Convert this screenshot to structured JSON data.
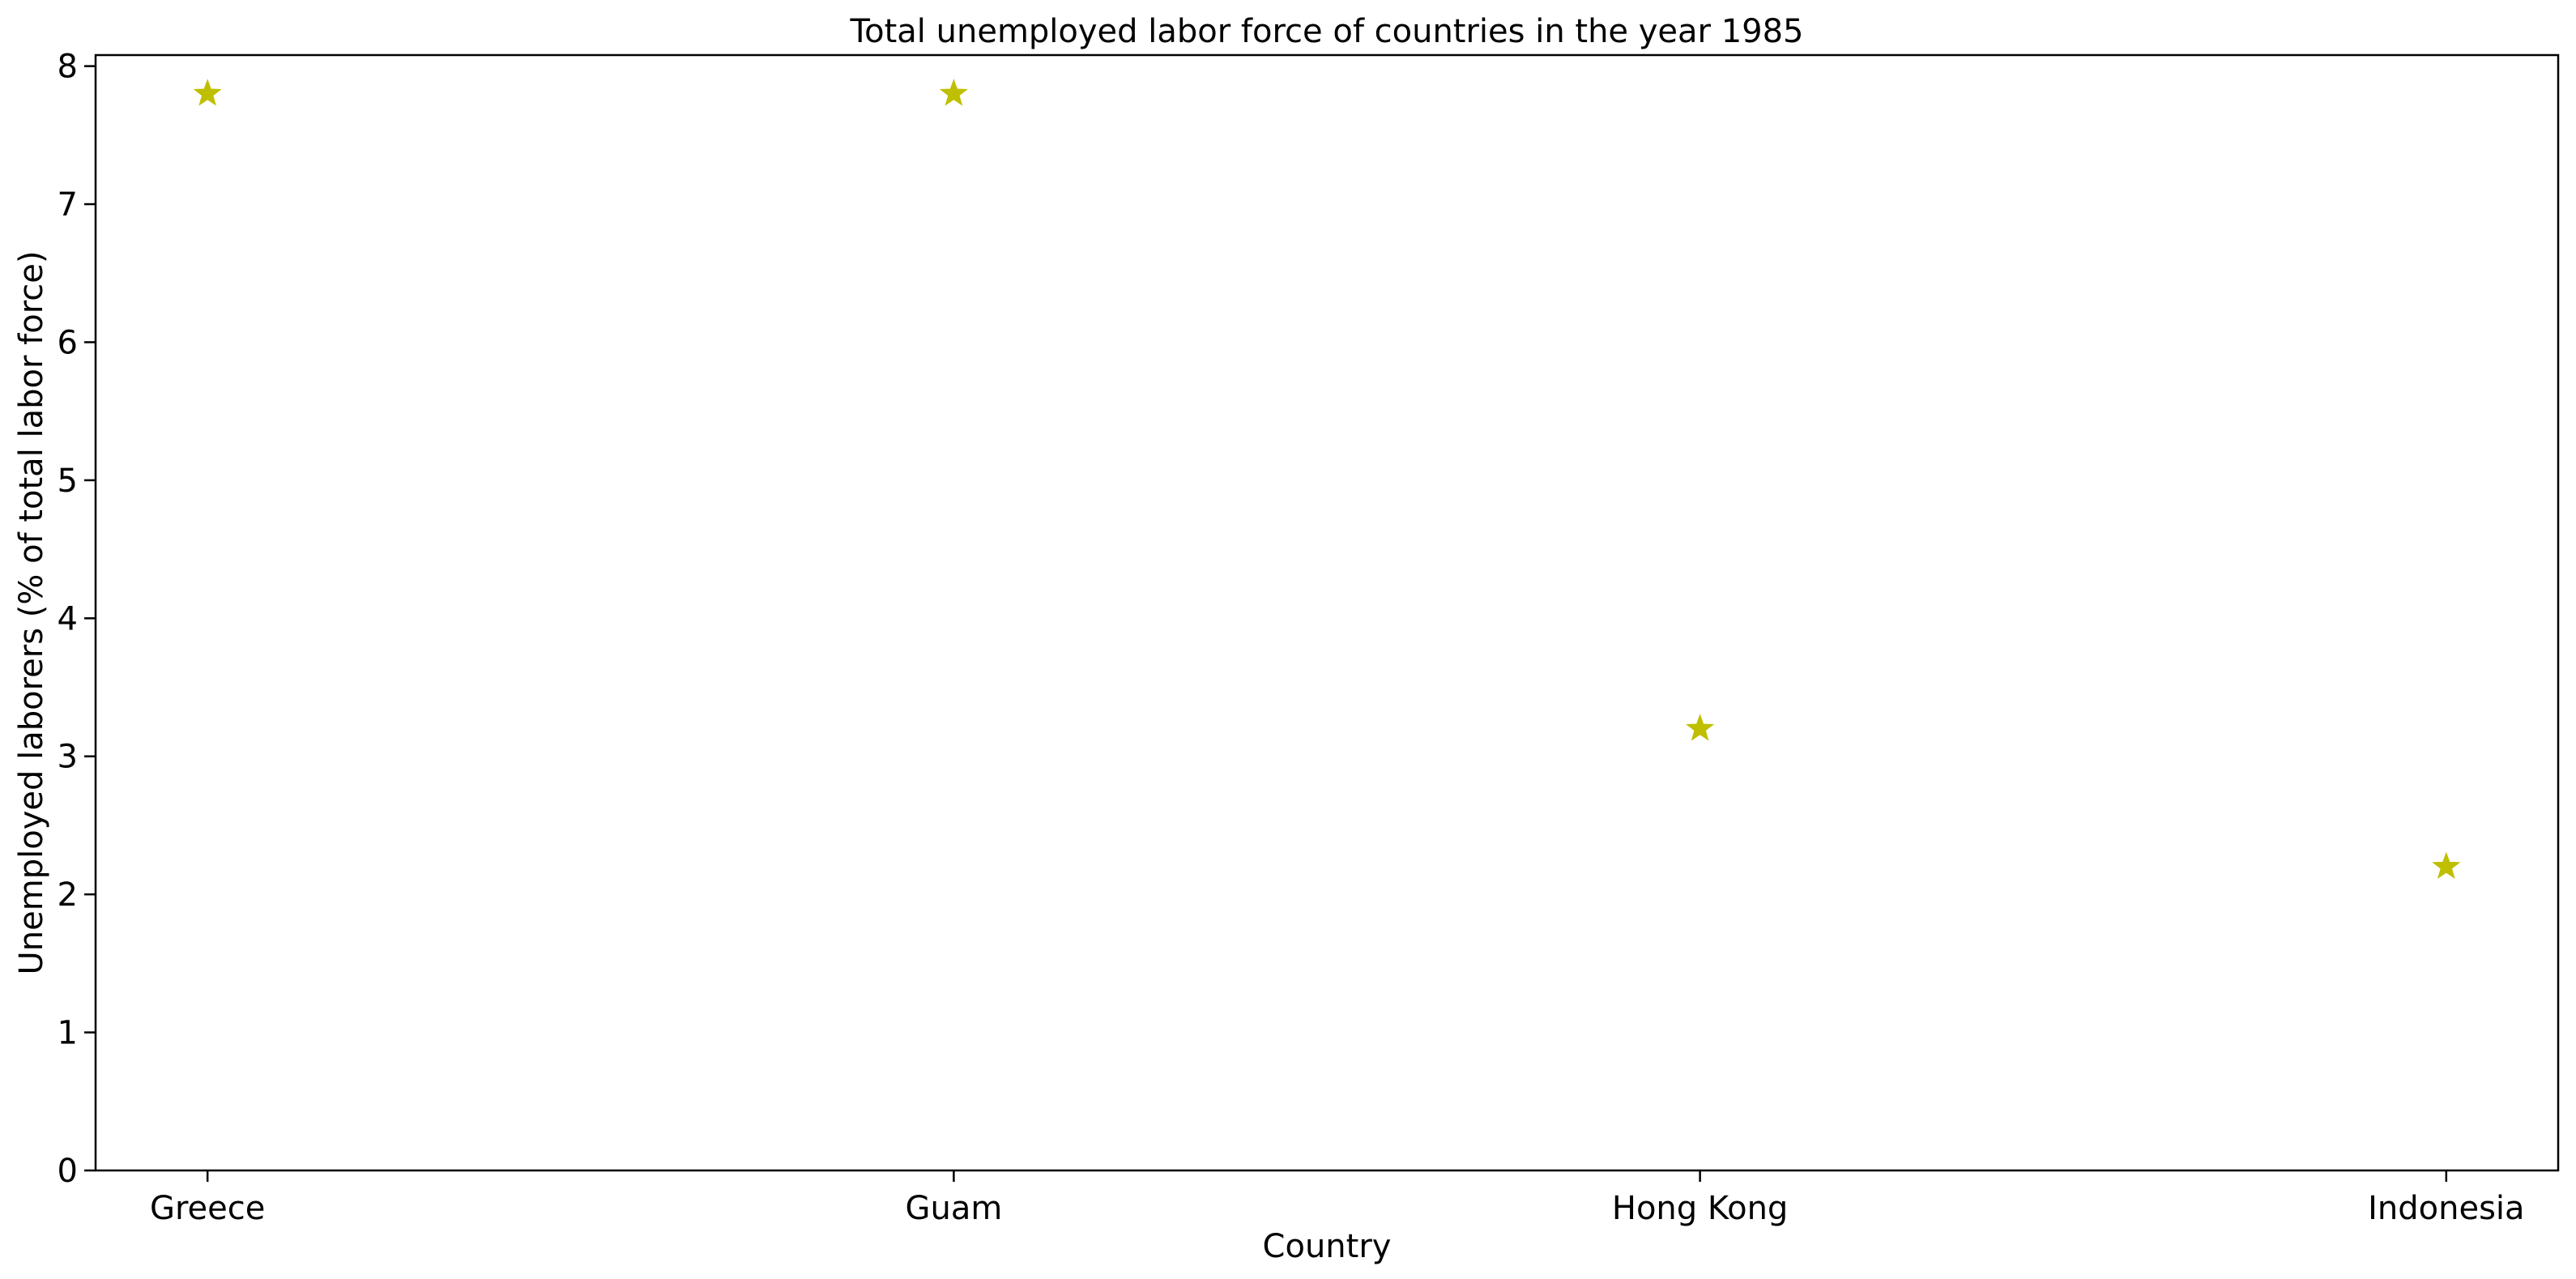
{
  "chart_data": {
    "type": "scatter",
    "title": "Total unemployed labor force of countries in the year 1985",
    "xlabel": "Country",
    "ylabel": "Unemployed laborers (% of total labor force)",
    "categories": [
      "Greece",
      "Guam",
      "Hong Kong",
      "Indonesia"
    ],
    "series": [
      {
        "values": [
          7.8,
          7.8,
          3.2,
          2.2
        ],
        "color": "#bfbf00",
        "marker": "star"
      }
    ],
    "ylim": [
      0,
      8.08
    ],
    "yticks": [
      0,
      1,
      2,
      3,
      4,
      5,
      6,
      7,
      8
    ],
    "grid": false,
    "legend": "none"
  }
}
